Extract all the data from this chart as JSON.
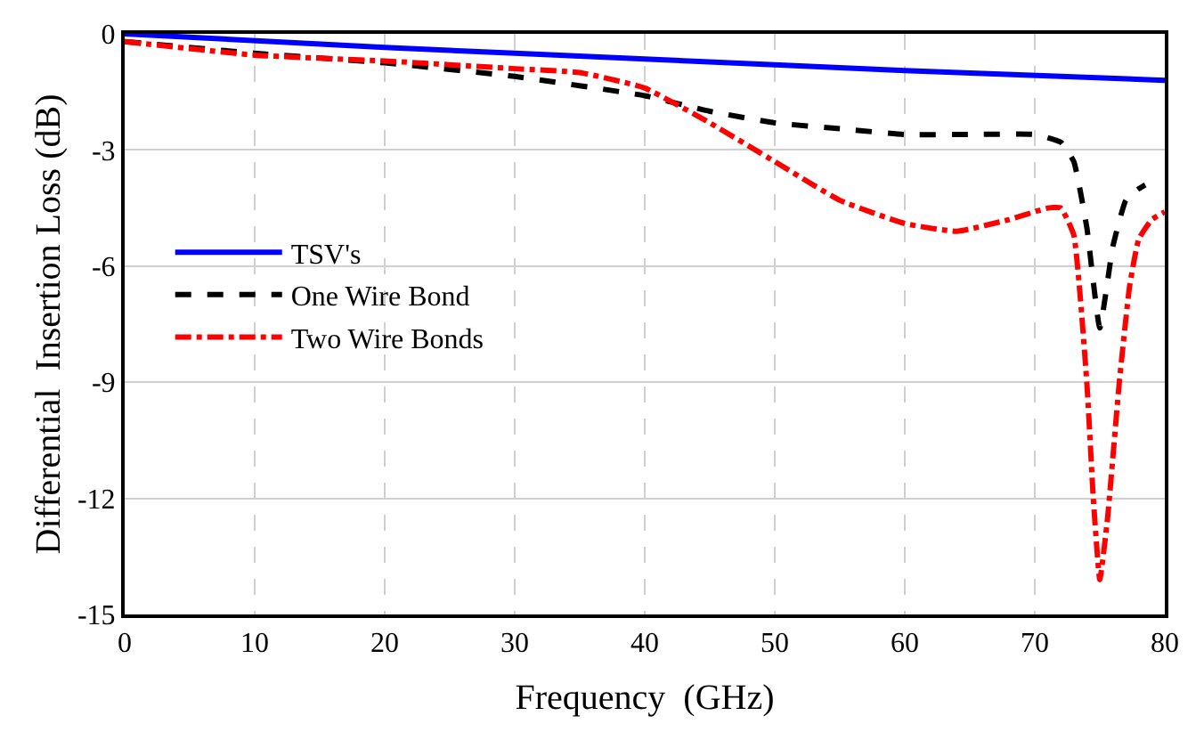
{
  "chart_data": {
    "type": "line",
    "xlabel": "Frequency  (GHz)",
    "ylabel": "Differential  Insertion Loss (dB)",
    "xlim": [
      0,
      80
    ],
    "xticks": [
      0,
      10,
      20,
      30,
      40,
      50,
      60,
      70,
      80
    ],
    "ylim": [
      -15,
      0
    ],
    "yticks": [
      -15,
      -12,
      -9,
      -6,
      -3,
      0
    ],
    "grid": true,
    "legend": "left",
    "marker": "none",
    "series": [
      {
        "name": "TSV's",
        "color": "#0000ff",
        "line_style": "solid",
        "x": [
          0,
          20,
          40,
          60,
          80
        ],
        "values": [
          0,
          -0.35,
          -0.65,
          -0.95,
          -1.2
        ]
      },
      {
        "name": "One Wire Bond",
        "color": "#000000",
        "line_style": "dashed",
        "x": [
          0,
          10,
          20,
          30,
          40,
          45,
          50,
          55,
          60,
          65,
          70,
          72,
          73,
          74,
          75,
          76,
          77,
          78,
          78.5
        ],
        "values": [
          -0.2,
          -0.5,
          -0.75,
          -1.1,
          -1.6,
          -2.0,
          -2.3,
          -2.45,
          -2.6,
          -2.6,
          -2.6,
          -2.8,
          -3.3,
          -5.0,
          -7.6,
          -5.5,
          -4.3,
          -4.0,
          -3.9
        ]
      },
      {
        "name": "Two Wire Bonds",
        "color": "#ff0000",
        "line_style": "dashdot",
        "x": [
          0,
          10,
          20,
          30,
          35,
          40,
          45,
          50,
          55,
          60,
          64,
          68,
          71,
          72,
          73,
          74,
          74.5,
          75,
          75.6,
          76.5,
          77.3,
          78,
          79,
          80
        ],
        "values": [
          -0.2,
          -0.55,
          -0.7,
          -0.9,
          -1.0,
          -1.4,
          -2.3,
          -3.3,
          -4.3,
          -4.9,
          -5.1,
          -4.8,
          -4.5,
          -4.5,
          -5.2,
          -9.0,
          -12.0,
          -14.1,
          -12.5,
          -9.0,
          -6.5,
          -5.3,
          -4.8,
          -4.6
        ]
      }
    ]
  }
}
